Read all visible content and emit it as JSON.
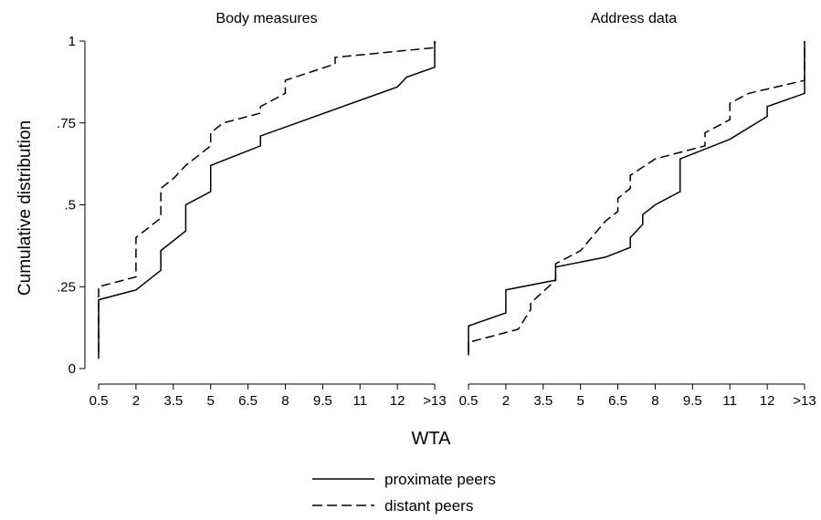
{
  "chart_data": {
    "type": "line",
    "step": true,
    "ylabel": "Cumulative distribution",
    "xlabel": "WTA",
    "x_ticks": [
      "0.5",
      "2",
      "3.5",
      "5",
      "6.5",
      "8",
      "9.5",
      "11",
      "12",
      ">13"
    ],
    "y_ticks": [
      "0",
      ".25",
      ".5",
      ".75",
      "1"
    ],
    "ylim": [
      0,
      1
    ],
    "legend": {
      "position": "bottom-center"
    },
    "panels": [
      {
        "title": "Body measures",
        "series": [
          {
            "name": "proximate peers",
            "dash": "solid",
            "points": [
              [
                0.5,
                0.03
              ],
              [
                0.5,
                0.21
              ],
              [
                2,
                0.24
              ],
              [
                3,
                0.3
              ],
              [
                3,
                0.36
              ],
              [
                4,
                0.42
              ],
              [
                4,
                0.5
              ],
              [
                5,
                0.54
              ],
              [
                5,
                0.62
              ],
              [
                7,
                0.68
              ],
              [
                7,
                0.71
              ],
              [
                12,
                0.86
              ],
              [
                12.5,
                0.89
              ],
              [
                14,
                0.92
              ],
              [
                14,
                1.0
              ]
            ]
          },
          {
            "name": "distant peers",
            "dash": "dashed",
            "points": [
              [
                0.5,
                0.05
              ],
              [
                0.5,
                0.25
              ],
              [
                2,
                0.28
              ],
              [
                2,
                0.4
              ],
              [
                3,
                0.46
              ],
              [
                3,
                0.55
              ],
              [
                3.5,
                0.58
              ],
              [
                4,
                0.62
              ],
              [
                4,
                0.62
              ],
              [
                5,
                0.68
              ],
              [
                5,
                0.72
              ],
              [
                5.5,
                0.75
              ],
              [
                7,
                0.78
              ],
              [
                7,
                0.8
              ],
              [
                8,
                0.84
              ],
              [
                8,
                0.88
              ],
              [
                10,
                0.93
              ],
              [
                10,
                0.95
              ],
              [
                14,
                0.98
              ],
              [
                14,
                1.0
              ]
            ]
          }
        ]
      },
      {
        "title": "Address data",
        "series": [
          {
            "name": "proximate peers",
            "dash": "solid",
            "points": [
              [
                0.5,
                0.04
              ],
              [
                0.5,
                0.13
              ],
              [
                2,
                0.17
              ],
              [
                2,
                0.24
              ],
              [
                4,
                0.27
              ],
              [
                4,
                0.31
              ],
              [
                6,
                0.34
              ],
              [
                7,
                0.37
              ],
              [
                7,
                0.4
              ],
              [
                7.5,
                0.44
              ],
              [
                7.5,
                0.47
              ],
              [
                8,
                0.5
              ],
              [
                9,
                0.54
              ],
              [
                9,
                0.64
              ],
              [
                11,
                0.7
              ],
              [
                12,
                0.77
              ],
              [
                12,
                0.8
              ],
              [
                14,
                0.84
              ],
              [
                14,
                1.0
              ]
            ]
          },
          {
            "name": "distant peers",
            "dash": "dashed",
            "points": [
              [
                0.5,
                0.05
              ],
              [
                0.5,
                0.08
              ],
              [
                2,
                0.11
              ],
              [
                2.5,
                0.12
              ],
              [
                3,
                0.18
              ],
              [
                3,
                0.2
              ],
              [
                4,
                0.27
              ],
              [
                4,
                0.32
              ],
              [
                5,
                0.36
              ],
              [
                6,
                0.45
              ],
              [
                6.5,
                0.48
              ],
              [
                6.5,
                0.52
              ],
              [
                7,
                0.55
              ],
              [
                7,
                0.59
              ],
              [
                8,
                0.64
              ],
              [
                10,
                0.68
              ],
              [
                10,
                0.72
              ],
              [
                11,
                0.76
              ],
              [
                11,
                0.81
              ],
              [
                11.5,
                0.84
              ],
              [
                14,
                0.88
              ],
              [
                14,
                1.0
              ]
            ]
          }
        ]
      }
    ]
  }
}
